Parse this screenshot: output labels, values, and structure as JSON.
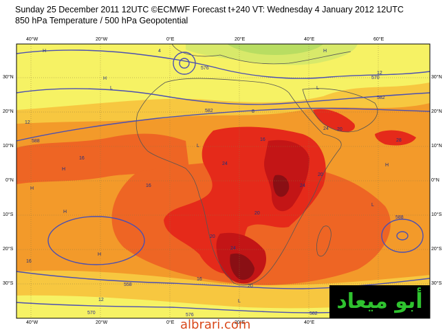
{
  "header": {
    "line1": "Sunday 25 December 2011 12UTC ©ECMWF Forecast t+240 VT: Wednesday 4 January 2012 12UTC",
    "line2": "850 hPa Temperature / 500 hPa Geopotential"
  },
  "axes": {
    "lon_labels": [
      "40°W",
      "20°W",
      "0°E",
      "20°E",
      "40°E",
      "60°E"
    ],
    "lat_labels": [
      "30°N",
      "20°N",
      "10°N",
      "0°N",
      "10°S",
      "20°S",
      "30°S"
    ]
  },
  "colors": {
    "sea_cold": "#d8e96a",
    "cool": "#f6f264",
    "mild": "#f7c740",
    "warm": "#f39a2a",
    "hot": "#ee6524",
    "very_hot": "#e52a1a",
    "extreme": "#c31516",
    "peak": "#8a0f14",
    "contour": "#4b4fb2"
  },
  "contour_labels": [
    "582",
    "588",
    "576",
    "570",
    "558",
    "576",
    "582",
    "588",
    "582",
    "570"
  ],
  "temp_labels": [
    "12",
    "16",
    "16",
    "16",
    "20",
    "24",
    "24",
    "20",
    "20",
    "28",
    "24",
    "24",
    "20",
    "16",
    "12",
    "12",
    "20",
    "16",
    "8",
    "4"
  ],
  "markers": [
    "H",
    "H",
    "H",
    "L",
    "L",
    "L",
    "H",
    "H",
    "H",
    "L",
    "H",
    "L",
    "H"
  ],
  "watermark": {
    "brand": "أبو ميعاد",
    "site": "albrari.com"
  }
}
